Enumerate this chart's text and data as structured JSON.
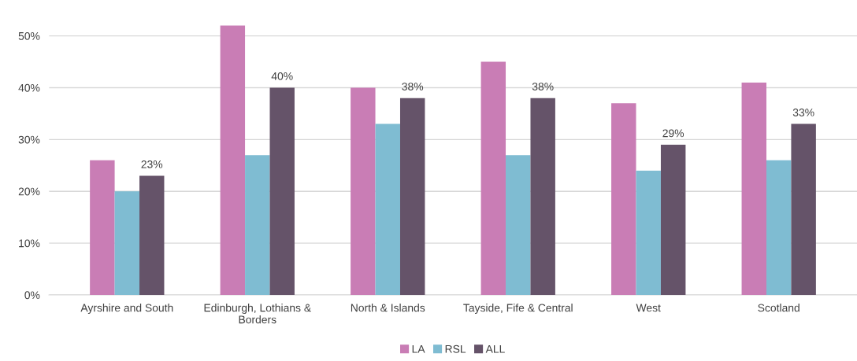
{
  "chart_data": {
    "type": "bar",
    "categories": [
      "Ayrshire and South",
      "Edinburgh, Lothians &\nBorders",
      "North & Islands",
      "Tayside, Fife & Central",
      "West",
      "Scotland"
    ],
    "series": [
      {
        "name": "LA",
        "color": "#c97db5",
        "values": [
          26,
          52,
          40,
          45,
          37,
          41
        ]
      },
      {
        "name": "RSL",
        "color": "#7fbcd2",
        "values": [
          20,
          27,
          33,
          27,
          24,
          26
        ]
      },
      {
        "name": "ALL",
        "color": "#655369",
        "values": [
          23,
          40,
          38,
          38,
          29,
          33
        ],
        "value_labels": [
          "23%",
          "40%",
          "38%",
          "38%",
          "29%",
          "33%"
        ]
      }
    ],
    "ylim": [
      0,
      54
    ],
    "yticks": [
      {
        "value": 0,
        "label": "0%"
      },
      {
        "value": 10,
        "label": "10%"
      },
      {
        "value": 20,
        "label": "20%"
      },
      {
        "value": 30,
        "label": "30%"
      },
      {
        "value": 40,
        "label": "40%"
      },
      {
        "value": 50,
        "label": "50%"
      }
    ],
    "grid": "y",
    "legend": "bottom"
  }
}
